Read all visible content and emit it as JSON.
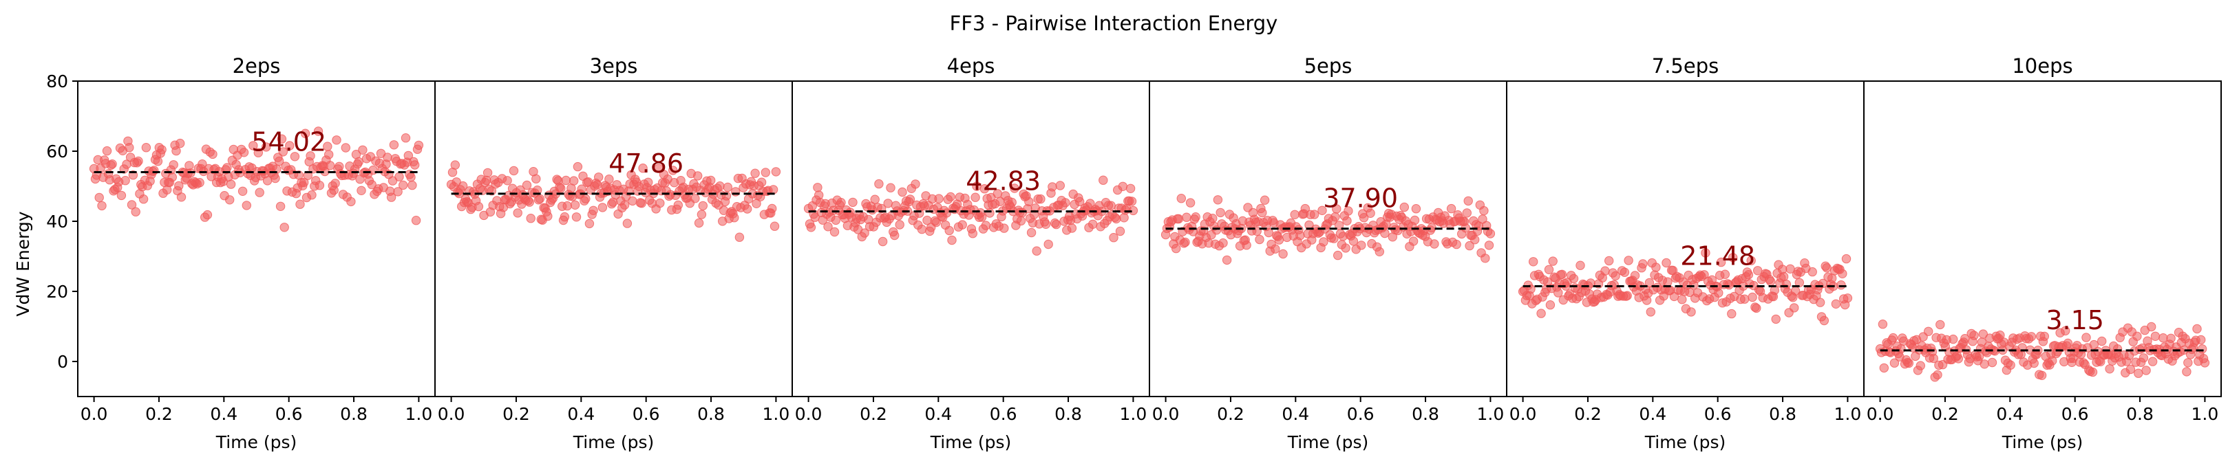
{
  "figure": {
    "title": "FF3 - Pairwise Interaction Energy",
    "ylabel": "VdW Energy",
    "xlabel": "Time (ps)"
  },
  "colors": {
    "points": "#f05a5a",
    "mean_line": "#000000",
    "annotation": "#8b0000",
    "axes": "#000000"
  },
  "chart_data": [
    {
      "type": "scatter",
      "title": "2eps",
      "mean": 54.02,
      "mean_label": "54.02",
      "spread": 4.5,
      "n": 250,
      "xlabel": "Time (ps)",
      "ylabel": "VdW Energy",
      "xlim": [
        -0.05,
        1.05
      ],
      "ylim": [
        -10,
        80
      ],
      "xticks": [
        "0.0",
        "0.2",
        "0.4",
        "0.6",
        "0.8",
        "1.0"
      ],
      "yticks": [
        "0",
        "20",
        "40",
        "60",
        "80"
      ]
    },
    {
      "type": "scatter",
      "title": "3eps",
      "mean": 47.86,
      "mean_label": "47.86",
      "spread": 3.5,
      "n": 250,
      "xlabel": "Time (ps)",
      "xlim": [
        -0.05,
        1.05
      ],
      "ylim": [
        -10,
        80
      ],
      "xticks": [
        "0.0",
        "0.2",
        "0.4",
        "0.6",
        "0.8",
        "1.0"
      ]
    },
    {
      "type": "scatter",
      "title": "4eps",
      "mean": 42.83,
      "mean_label": "42.83",
      "spread": 3.5,
      "n": 250,
      "xlabel": "Time (ps)",
      "xlim": [
        -0.05,
        1.05
      ],
      "ylim": [
        -10,
        80
      ],
      "xticks": [
        "0.0",
        "0.2",
        "0.4",
        "0.6",
        "0.8",
        "1.0"
      ]
    },
    {
      "type": "scatter",
      "title": "5eps",
      "mean": 37.9,
      "mean_label": "37.90",
      "spread": 3.5,
      "n": 250,
      "xlabel": "Time (ps)",
      "xlim": [
        -0.05,
        1.05
      ],
      "ylim": [
        -10,
        80
      ],
      "xticks": [
        "0.0",
        "0.2",
        "0.4",
        "0.6",
        "0.8",
        "1.0"
      ]
    },
    {
      "type": "scatter",
      "title": "7.5eps",
      "mean": 21.48,
      "mean_label": "21.48",
      "spread": 3.5,
      "n": 250,
      "xlabel": "Time (ps)",
      "xlim": [
        -0.05,
        1.05
      ],
      "ylim": [
        -10,
        80
      ],
      "xticks": [
        "0.0",
        "0.2",
        "0.4",
        "0.6",
        "0.8",
        "1.0"
      ]
    },
    {
      "type": "scatter",
      "title": "10eps",
      "mean": 3.15,
      "mean_label": "3.15",
      "spread": 3.2,
      "n": 250,
      "xlabel": "Time (ps)",
      "xlim": [
        -0.05,
        1.05
      ],
      "ylim": [
        -10,
        80
      ],
      "xticks": [
        "0.0",
        "0.2",
        "0.4",
        "0.6",
        "0.8",
        "1.0"
      ]
    }
  ]
}
